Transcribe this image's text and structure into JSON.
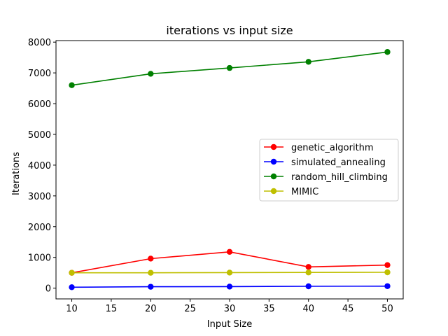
{
  "chart_data": {
    "type": "line",
    "title": "iterations vs input size",
    "xlabel": "Input Size",
    "ylabel": "Iterations",
    "x": [
      10,
      20,
      30,
      40,
      50
    ],
    "xlim": [
      8,
      52
    ],
    "ylim": [
      -350,
      8050
    ],
    "xticks": [
      10,
      15,
      20,
      25,
      30,
      35,
      40,
      45,
      50
    ],
    "yticks": [
      0,
      1000,
      2000,
      3000,
      4000,
      5000,
      6000,
      7000,
      8000
    ],
    "grid": false,
    "legend_position": "center-right",
    "series": [
      {
        "name": "genetic_algorithm",
        "color": "#ff0000",
        "values": [
          500,
          960,
          1180,
          690,
          750
        ]
      },
      {
        "name": "simulated_annealing",
        "color": "#0000ff",
        "values": [
          30,
          45,
          50,
          60,
          65
        ]
      },
      {
        "name": "random_hill_climbing",
        "color": "#008000",
        "values": [
          6600,
          6970,
          7160,
          7360,
          7680
        ]
      },
      {
        "name": "MIMIC",
        "color": "#bfbf00",
        "values": [
          500,
          500,
          505,
          510,
          515
        ]
      }
    ]
  }
}
